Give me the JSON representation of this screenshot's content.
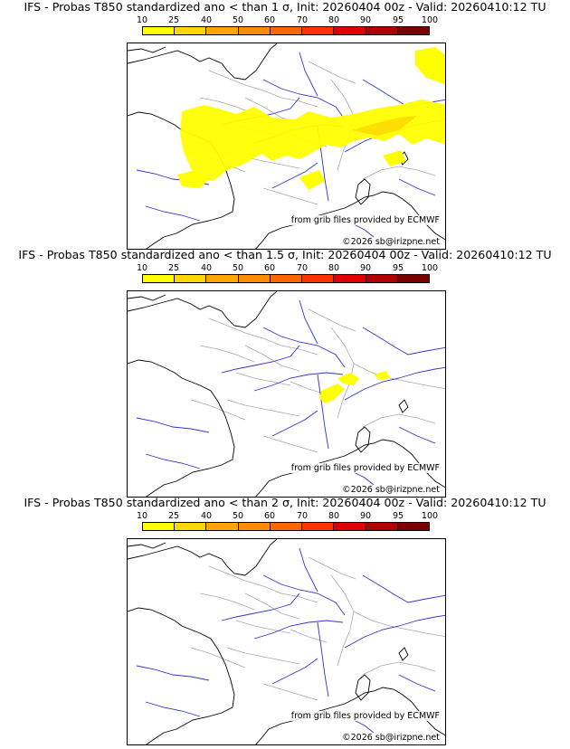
{
  "scale": {
    "ticks": [
      "10",
      "25",
      "40",
      "50",
      "60",
      "70",
      "80",
      "90",
      "95",
      "100"
    ],
    "colors": [
      "#ffff00",
      "#ffd700",
      "#ffa500",
      "#ff8c00",
      "#ff6600",
      "#ff3300",
      "#e00000",
      "#b00000",
      "#7a0000"
    ]
  },
  "panels": [
    {
      "title": "IFS - Probas T850  standardized ano < than 1 σ, Init: 20260404 00z - Valid: 20260410:12 TU"
    },
    {
      "title": "IFS - Probas T850  standardized ano < than 1.5 σ, Init: 20260404 00z - Valid: 20260410:12 TU"
    },
    {
      "title": "IFS - Probas T850  standardized ano < than 2 σ, Init: 20260404 00z - Valid: 20260410:12 TU"
    }
  ],
  "credits": {
    "source": "from grib files provided by ECMWF",
    "copyright": "©2026 sb@irizpne.net"
  },
  "colors": {
    "coast": "#000000",
    "rivers": "#3333cc",
    "borders": "#aaaaaa"
  }
}
